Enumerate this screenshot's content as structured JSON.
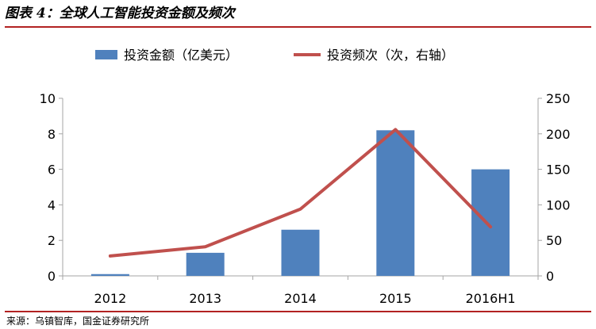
{
  "figure": {
    "title": "图表 4：全球人工智能投资金额及频次",
    "source": "来源：乌镇智库，国金证券研究所"
  },
  "colors": {
    "bar": "#4f81bd",
    "line": "#c0504d",
    "title_rule": "#b22222"
  },
  "chart_data": {
    "type": "bar",
    "categories": [
      "2012",
      "2013",
      "2014",
      "2015",
      "2016H1"
    ],
    "series": [
      {
        "name": "投资金额（亿美元）",
        "type": "bar",
        "axis": "left",
        "values": [
          0.1,
          1.3,
          2.6,
          8.2,
          6.0
        ]
      },
      {
        "name": "投资频次（次，右轴）",
        "type": "line",
        "axis": "right",
        "values": [
          28,
          41,
          94,
          206,
          69
        ]
      }
    ],
    "y_left": {
      "min": 0,
      "max": 10,
      "ticks": [
        0,
        2,
        4,
        6,
        8,
        10
      ]
    },
    "y_right": {
      "min": 0,
      "max": 250,
      "ticks": [
        0,
        50,
        100,
        150,
        200,
        250
      ]
    },
    "grid": false,
    "legend": "top"
  }
}
